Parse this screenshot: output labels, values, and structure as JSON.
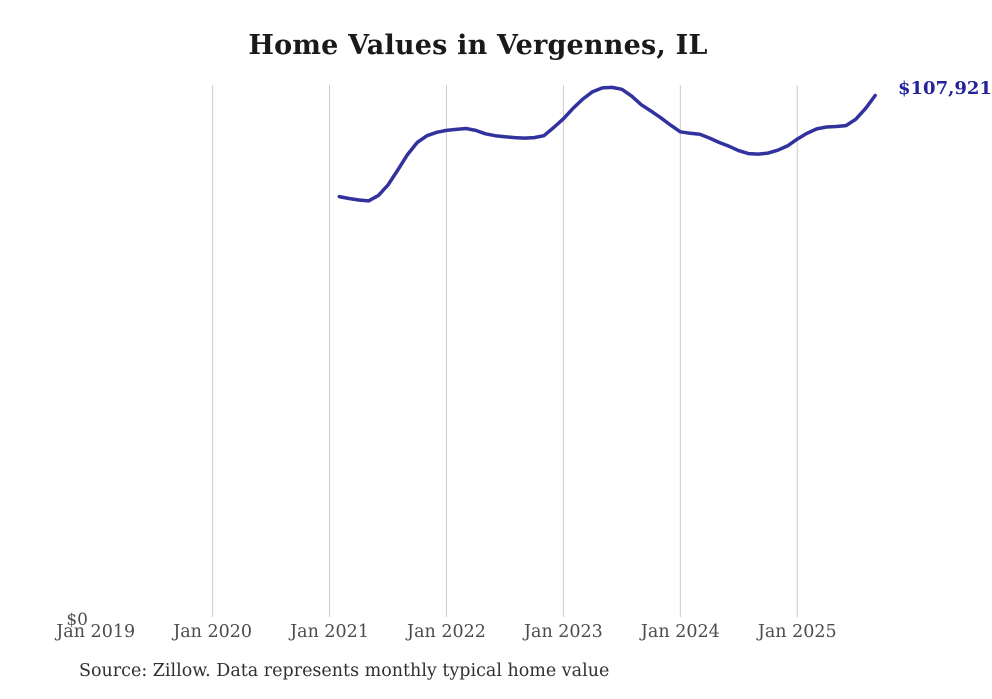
{
  "chart_data": {
    "type": "line",
    "title": "Home Values in Vergennes, IL",
    "source_note": "Source: Zillow. Data represents monthly typical home value",
    "end_label": "$107,921",
    "latest_value": 107921,
    "y_axis": {
      "zero_label": "$0",
      "min": 0,
      "max_visible": 110100,
      "gridlines": false
    },
    "x_ticks": [
      {
        "label": "Jan 2019",
        "month": 0,
        "gridline": false
      },
      {
        "label": "Jan 2020",
        "month": 12,
        "gridline": true
      },
      {
        "label": "Jan 2021",
        "month": 24,
        "gridline": true
      },
      {
        "label": "Jan 2022",
        "month": 36,
        "gridline": true
      },
      {
        "label": "Jan 2023",
        "month": 48,
        "gridline": true
      },
      {
        "label": "Jan 2024",
        "month": 60,
        "gridline": true
      },
      {
        "label": "Jan 2025",
        "month": 72,
        "gridline": true
      }
    ],
    "series": [
      {
        "name": "Monthly typical home value",
        "dates": [
          "2021-02",
          "2021-03",
          "2021-04",
          "2021-05",
          "2021-06",
          "2021-07",
          "2021-08",
          "2021-09",
          "2021-10",
          "2021-11",
          "2021-12",
          "2022-01",
          "2022-02",
          "2022-03",
          "2022-04",
          "2022-05",
          "2022-06",
          "2022-07",
          "2022-08",
          "2022-09",
          "2022-10",
          "2022-11",
          "2022-12",
          "2023-01",
          "2023-02",
          "2023-03",
          "2023-04",
          "2023-05",
          "2023-06",
          "2023-07",
          "2023-08",
          "2023-09",
          "2023-10",
          "2023-11",
          "2023-12",
          "2024-01",
          "2024-02",
          "2024-03",
          "2024-04",
          "2024-05",
          "2024-06",
          "2024-07",
          "2024-08",
          "2024-09",
          "2024-10",
          "2024-11",
          "2024-12",
          "2025-01",
          "2025-02",
          "2025-03",
          "2025-04",
          "2025-05",
          "2025-06",
          "2025-07",
          "2025-08",
          "2025-09"
        ],
        "values": [
          87000,
          86600,
          86300,
          86100,
          87200,
          89400,
          92500,
          95700,
          98200,
          99600,
          100300,
          100700,
          100900,
          101100,
          100700,
          100000,
          99600,
          99400,
          99200,
          99100,
          99200,
          99600,
          101300,
          103100,
          105300,
          107200,
          108700,
          109500,
          109600,
          109200,
          107800,
          106000,
          104700,
          103300,
          101800,
          100400,
          100100,
          99900,
          99100,
          98200,
          97400,
          96500,
          95900,
          95800,
          96000,
          96600,
          97500,
          98900,
          100100,
          101000,
          101400,
          101500,
          101700,
          103000,
          105200,
          107921
        ]
      }
    ],
    "legend": {
      "visible": false
    },
    "colors": {
      "line": "#32329f",
      "value_label": "#23239a",
      "gridline": "#cccccc",
      "axis_label": "#4c4c4c",
      "source_text": "#303030",
      "title": "#1a1a1a",
      "background": "#ffffff"
    }
  }
}
